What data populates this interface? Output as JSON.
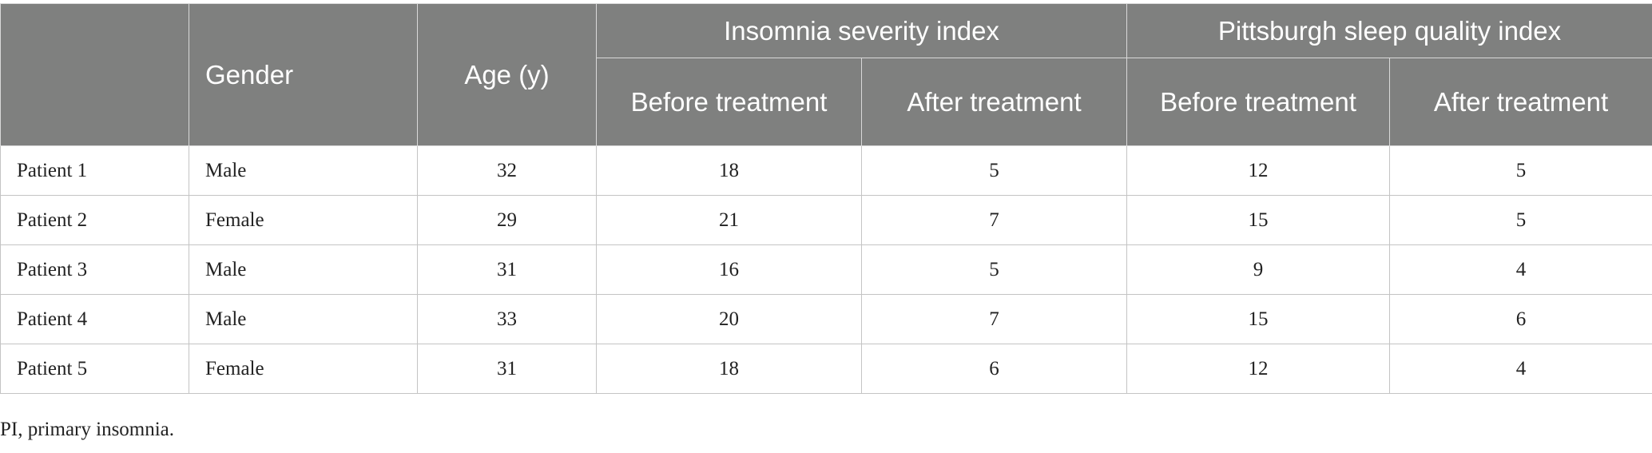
{
  "table": {
    "headers": {
      "blank": "",
      "gender": "Gender",
      "age": "Age (y)",
      "isi": "Insomnia severity index",
      "psqi": "Pittsburgh sleep quality index",
      "isi_before": "Before treatment",
      "isi_after": "After treatment",
      "psqi_before": "Before treatment",
      "psqi_after": "After treatment"
    },
    "rows": [
      [
        "Patient 1",
        "Male",
        "32",
        "18",
        "5",
        "12",
        "5"
      ],
      [
        "Patient 2",
        "Female",
        "29",
        "21",
        "7",
        "15",
        "5"
      ],
      [
        "Patient 3",
        "Male",
        "31",
        "16",
        "5",
        "9",
        "4"
      ],
      [
        "Patient 4",
        "Male",
        "33",
        "20",
        "7",
        "15",
        "6"
      ],
      [
        "Patient 5",
        "Female",
        "31",
        "18",
        "6",
        "12",
        "4"
      ]
    ]
  },
  "footnote": "PI, primary insomnia.",
  "colors": {
    "header_bg": "#7f807f",
    "header_text": "#ffffff",
    "border": "#c4c4c4"
  }
}
